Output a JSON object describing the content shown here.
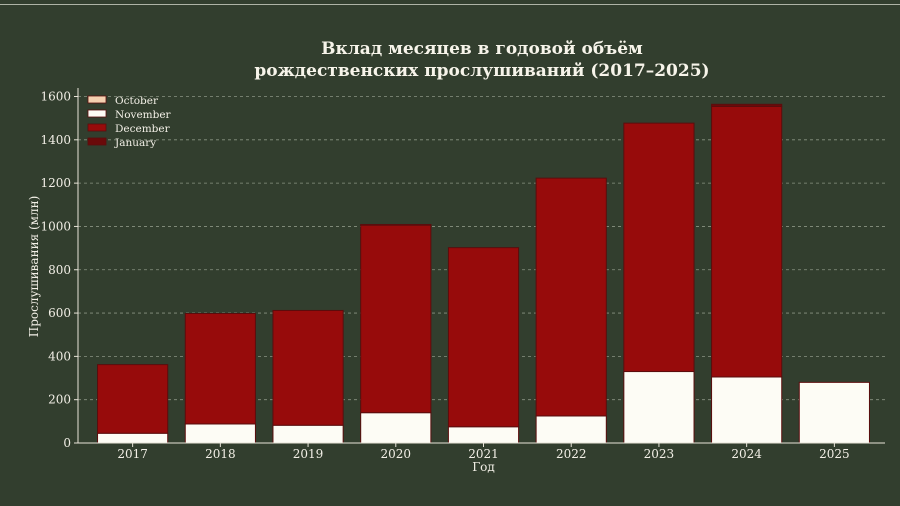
{
  "colors": {
    "background": "#323e2e",
    "grid": "#9aa392",
    "axis": "#e8e4d8",
    "text": "#f2efe6",
    "bar_edge": "#5a0d0d"
  },
  "chart_data": {
    "type": "bar",
    "stacked": true,
    "title": [
      "Вклад месяцев в годовой объём",
      "рождественских прослушиваний (2017–2025)"
    ],
    "xlabel": "Год",
    "ylabel": "Прослушивания (млн)",
    "categories": [
      "2017",
      "2018",
      "2019",
      "2020",
      "2021",
      "2022",
      "2023",
      "2024",
      "2025"
    ],
    "ylim": [
      0,
      1600
    ],
    "yticks": [
      0,
      200,
      400,
      600,
      800,
      1000,
      1200,
      1400,
      1600
    ],
    "grid": "horizontal-dashed",
    "legend_position": "top-left",
    "series": [
      {
        "name": "October",
        "color": "#f4d0b0",
        "values": [
          0,
          0,
          0,
          0,
          0,
          0,
          0,
          0,
          0
        ]
      },
      {
        "name": "November",
        "color": "#fdfcf5",
        "values": [
          45,
          88,
          82,
          140,
          75,
          125,
          330,
          305,
          280
        ]
      },
      {
        "name": "December",
        "color": "#970b0b",
        "values": [
          317,
          510,
          530,
          866,
          827,
          1098,
          1147,
          1249,
          0
        ]
      },
      {
        "name": "January",
        "color": "#6a0a0a",
        "values": [
          0,
          0,
          0,
          3,
          0,
          0,
          0,
          10,
          0
        ]
      }
    ]
  }
}
